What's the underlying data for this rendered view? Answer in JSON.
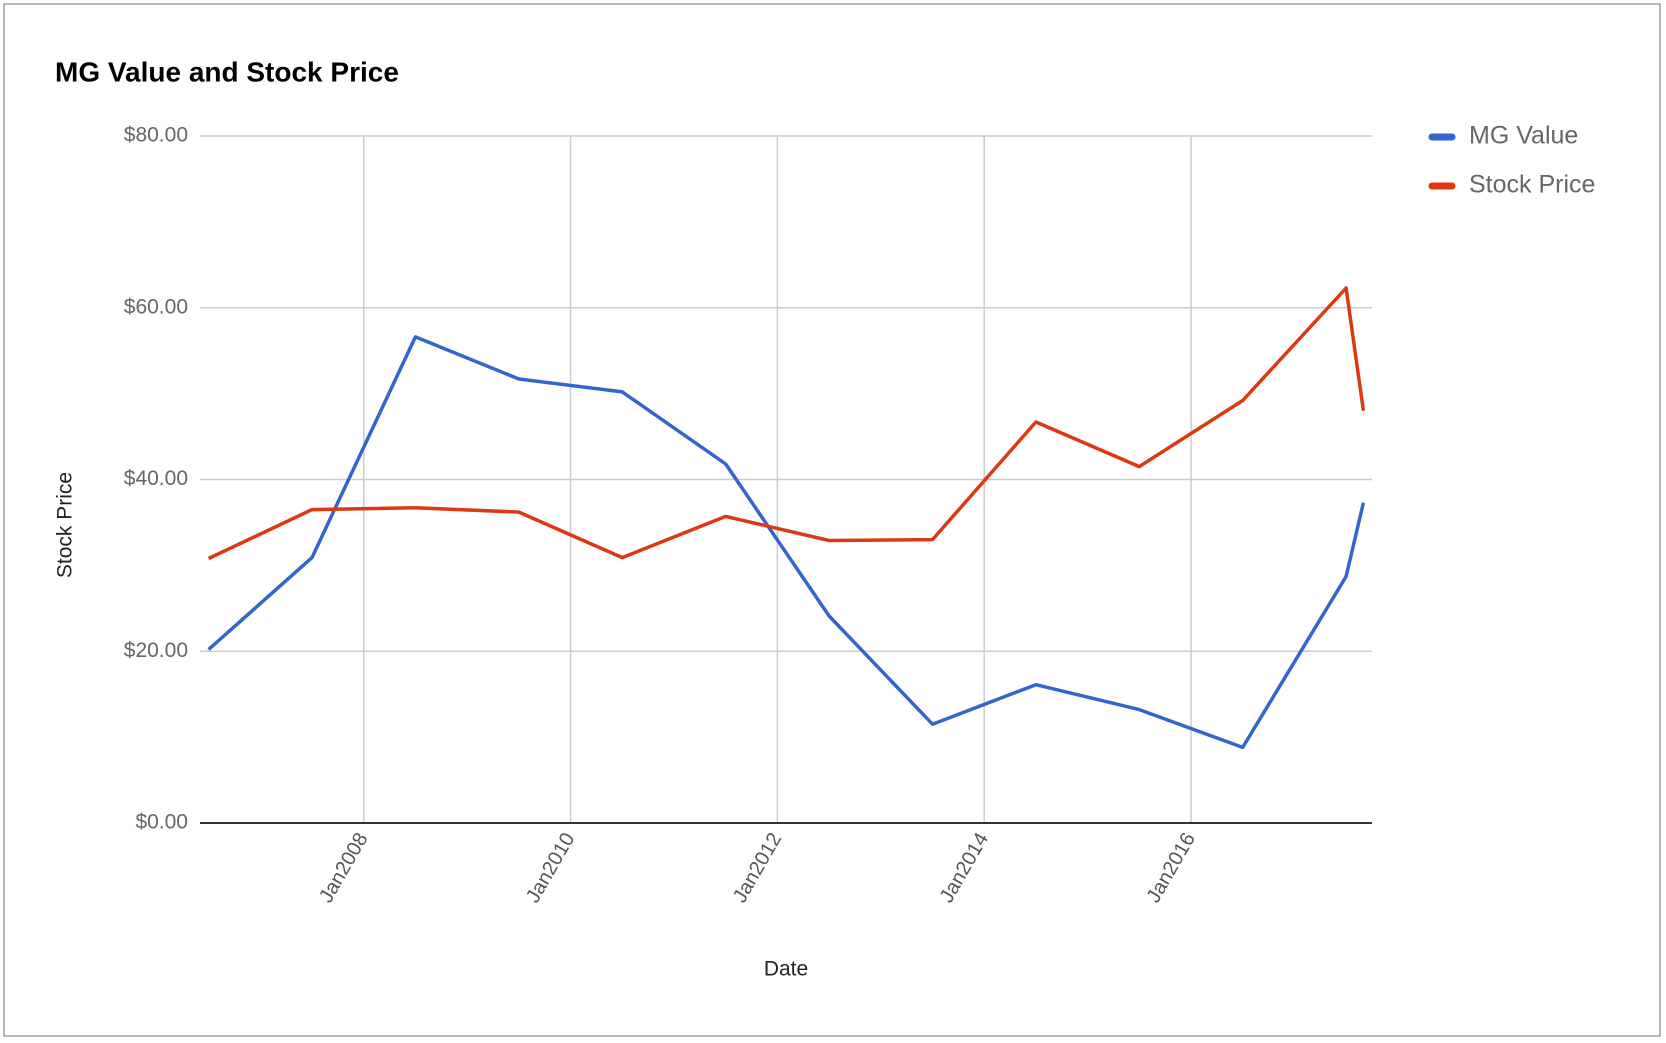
{
  "chart_data": {
    "type": "line",
    "title": "MG Value and Stock Price",
    "x_label": "Date",
    "y_label": "Stock Price",
    "x": [
      "2006-07",
      "2007-07",
      "2008-07",
      "2009-07",
      "2010-07",
      "2011-07",
      "2012-07",
      "2013-07",
      "2014-07",
      "2015-07",
      "2016-07",
      "2017-07",
      "2017-09"
    ],
    "series": [
      {
        "name": "MG Value",
        "color": "#3366cc",
        "values": [
          20.2,
          30.9,
          56.6,
          51.7,
          50.2,
          41.8,
          24.1,
          11.5,
          16.1,
          13.2,
          8.8,
          28.7,
          37.3
        ]
      },
      {
        "name": "Stock Price",
        "color": "#dc3912",
        "values": [
          30.8,
          36.5,
          36.7,
          36.2,
          30.9,
          35.7,
          32.9,
          33.0,
          46.7,
          41.5,
          49.2,
          62.3,
          48.0
        ]
      }
    ],
    "xlim": [
      "2006-06",
      "2017-10"
    ],
    "xticks": [
      {
        "value": "2008-01",
        "label": "Jan2008"
      },
      {
        "value": "2010-01",
        "label": "Jan2010"
      },
      {
        "value": "2012-01",
        "label": "Jan2012"
      },
      {
        "value": "2014-01",
        "label": "Jan2014"
      },
      {
        "value": "2016-01",
        "label": "Jan2016"
      }
    ],
    "ylim": [
      0,
      80
    ],
    "yticks": [
      {
        "value": 0,
        "label": "$0.00"
      },
      {
        "value": 20,
        "label": "$20.00"
      },
      {
        "value": 40,
        "label": "$40.00"
      },
      {
        "value": 60,
        "label": "$60.00"
      },
      {
        "value": 80,
        "label": "$80.00"
      }
    ],
    "grid": true,
    "legend": "right"
  }
}
